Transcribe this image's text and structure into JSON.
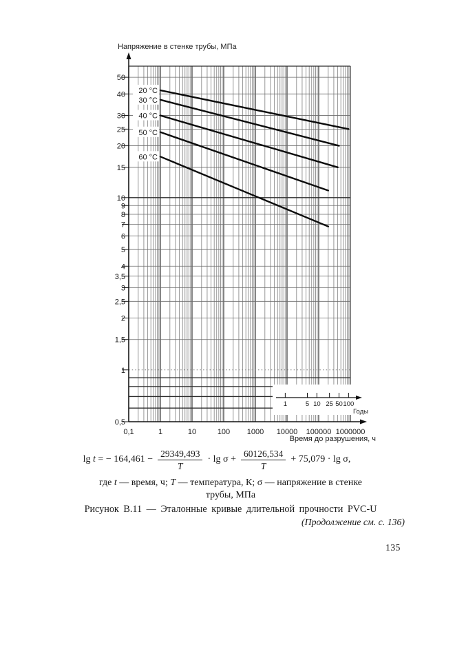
{
  "chart_data": {
    "type": "line",
    "title": "Напряжение в стенке трубы, МПа",
    "xlabel": "Время до разрушения, ч",
    "x_scale": "log",
    "y_scale": "log",
    "xlim": [
      0.1,
      1000000
    ],
    "ylim": [
      0.5,
      58
    ],
    "grid": true,
    "x_ticks": [
      {
        "v": 0.1,
        "label": "0,1"
      },
      {
        "v": 1,
        "label": "1"
      },
      {
        "v": 10,
        "label": "10"
      },
      {
        "v": 100,
        "label": "100"
      },
      {
        "v": 1000,
        "label": "1000"
      },
      {
        "v": 10000,
        "label": "10000"
      },
      {
        "v": 100000,
        "label": "100000"
      },
      {
        "v": 1000000,
        "label": "1000000"
      }
    ],
    "y_ticks": [
      {
        "v": 50,
        "label": "50"
      },
      {
        "v": 40,
        "label": "40"
      },
      {
        "v": 30,
        "label": "30"
      },
      {
        "v": 25,
        "label": "25"
      },
      {
        "v": 20,
        "label": "20"
      },
      {
        "v": 15,
        "label": "15"
      },
      {
        "v": 10,
        "label": "10"
      },
      {
        "v": 9,
        "label": "9"
      },
      {
        "v": 8,
        "label": "8"
      },
      {
        "v": 7,
        "label": "7"
      },
      {
        "v": 6,
        "label": "6"
      },
      {
        "v": 5,
        "label": "5"
      },
      {
        "v": 4,
        "label": "4"
      },
      {
        "v": 3.5,
        "label": "3,5"
      },
      {
        "v": 3,
        "label": "3"
      },
      {
        "v": 2.5,
        "label": "2,5"
      },
      {
        "v": 2,
        "label": "2"
      },
      {
        "v": 1.5,
        "label": "1,5"
      },
      {
        "v": 1,
        "label": "1"
      },
      {
        "v": 0.5,
        "label": "0,5"
      }
    ],
    "y_gridlines": [
      0.6,
      0.7,
      0.8,
      0.9,
      1,
      1.5,
      2,
      2.5,
      3,
      3.5,
      4,
      5,
      6,
      7,
      8,
      9,
      10,
      15,
      20,
      25,
      30,
      40,
      50
    ],
    "series": [
      {
        "name": "20 °C",
        "points": [
          [
            1,
            42
          ],
          [
            876000,
            25
          ]
        ]
      },
      {
        "name": "30 °C",
        "points": [
          [
            1,
            37
          ],
          [
            438000,
            20
          ]
        ]
      },
      {
        "name": "40 °C",
        "points": [
          [
            1,
            30
          ],
          [
            400000,
            15
          ]
        ]
      },
      {
        "name": "50 °C",
        "points": [
          [
            1,
            24
          ],
          [
            200000,
            11
          ]
        ]
      },
      {
        "name": "60 °C",
        "points": [
          [
            1,
            17.3
          ],
          [
            200000,
            6.8
          ]
        ]
      }
    ],
    "years_axis": {
      "label": "Годы",
      "ticks": [
        1,
        5,
        10,
        25,
        50,
        100
      ],
      "hours_per_year": 8760
    },
    "line_color": "#0c0c0c",
    "grid_color": "#6a6a6a"
  },
  "figure": {
    "formula": {
      "lg1": "lg",
      "t": "t",
      "eq": "= − 164,461 −",
      "num1": "29349,493",
      "den1": "T",
      "op1": "· lg σ +",
      "num2": "60126,534",
      "den2": "T",
      "tail": "+ 75,079 · lg σ,"
    },
    "where": {
      "w1": "где",
      "t": "t",
      "w2": "— время, ч;",
      "T": "T",
      "w3": "— температура, К; σ — напряжение в стенке",
      "line2": "трубы,  МПа"
    },
    "caption": "Рисунок В.11 — Эталонные  кривые  длительной прочности PVC-U",
    "continuation": "(Продолжение см. с. 136)"
  },
  "page": {
    "number": "135"
  }
}
